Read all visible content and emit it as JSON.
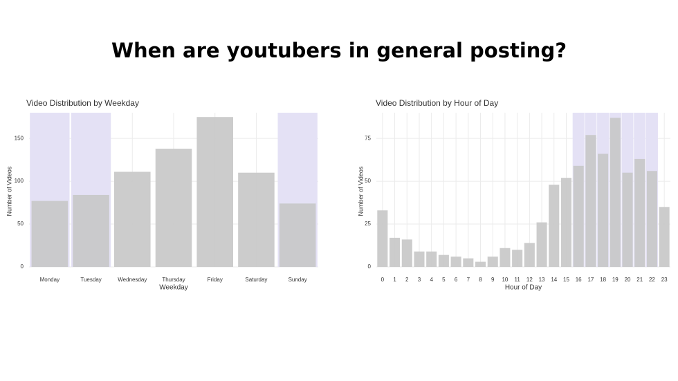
{
  "title": "When are youtubers in general posting?",
  "chart_data": [
    {
      "type": "bar",
      "title": "Video Distribution by Weekday",
      "x_label": "Weekday",
      "y_label": "Number of Videos",
      "categories": [
        "Monday",
        "Tuesday",
        "Wednesday",
        "Thursday",
        "Friday",
        "Saturday",
        "Sunday"
      ],
      "values": [
        77,
        84,
        111,
        138,
        175,
        110,
        74
      ],
      "color": "#c8c8c8",
      "highlight": [
        "Monday",
        "Tuesday",
        "Sunday"
      ],
      "highlight_color": "#e4e1f5",
      "ylim": [
        0,
        180
      ],
      "yticks": [
        0,
        50,
        100,
        150
      ],
      "grid": true
    },
    {
      "type": "bar",
      "title": "Video Distribution by Hour of Day",
      "x_label": "Hour of Day",
      "y_label": "Number of Videos",
      "categories": [
        0,
        1,
        2,
        3,
        4,
        5,
        6,
        7,
        8,
        9,
        10,
        11,
        12,
        13,
        14,
        15,
        16,
        17,
        18,
        19,
        20,
        21,
        22,
        23
      ],
      "values": [
        33,
        17,
        16,
        9,
        9,
        7,
        6,
        5,
        3,
        6,
        11,
        10,
        14,
        26,
        48,
        52,
        59,
        77,
        66,
        87,
        55,
        63,
        56,
        35
      ],
      "color": "#c8c8c8",
      "highlight": [
        16,
        17,
        18,
        19,
        20,
        21,
        22
      ],
      "highlight_color": "#e4e1f5",
      "ylim": [
        0,
        90
      ],
      "yticks": [
        0,
        25,
        50,
        75
      ],
      "grid": true
    }
  ]
}
